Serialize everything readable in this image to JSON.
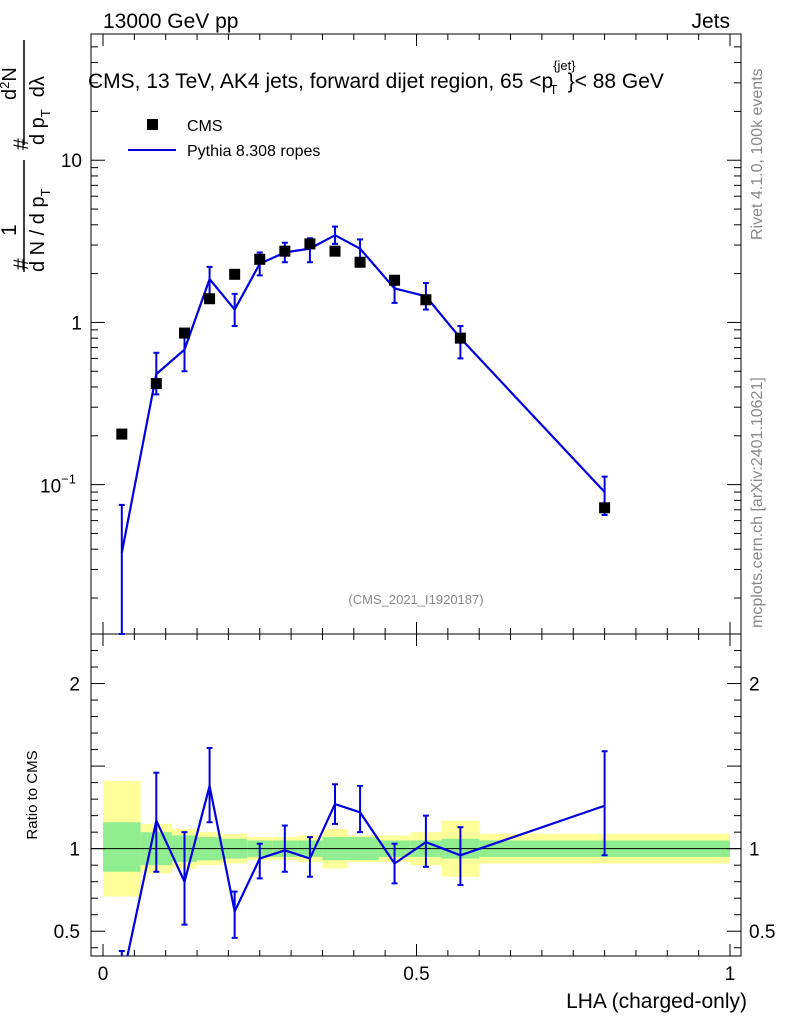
{
  "header": {
    "left": "13000 GeV pp",
    "right": "Jets"
  },
  "title": {
    "main": "CMS, 13 TeV, AK4 jets, forward dijet region, 65 <p",
    "sup": "{jet}",
    "sub": "T",
    "tail": "}< 88 GeV"
  },
  "side_labels": {
    "rivet": "Rivet 4.1.0,  100k events",
    "mcplots": "mcplots.cern.ch [arXiv:2401.10621]"
  },
  "analysis_id": "(CMS_2021_I1920187)",
  "ylabel_top": {
    "hash1": "#",
    "one": "1",
    "dN": "d N / d p",
    "T": "T",
    "hash2": "#",
    "d2N": "d",
    "two": "2",
    "N": "N",
    "dpT": "d p",
    "T2": "T",
    "dlambda": "dλ"
  },
  "ylabel_bottom": "Ratio to CMS",
  "xlabel": "LHA (charged-only)",
  "legend": [
    {
      "label": "CMS",
      "marker": "square",
      "color": "#000000"
    },
    {
      "label": "Pythia 8.308 ropes",
      "marker": "line",
      "color": "#0000e0"
    }
  ],
  "colors": {
    "mc": "#0000e0",
    "data": "#000000",
    "band_inner": "#90ee90",
    "band_outer": "#ffff99"
  },
  "chart_data": {
    "type": "line",
    "x_range": [
      0,
      1
    ],
    "x_ticks": [
      "0",
      "0.5",
      "1"
    ],
    "main": {
      "yscale": "log",
      "ylim": [
        0.012,
        60
      ],
      "y_ticks": [
        {
          "value": 0.1,
          "base": "10",
          "exp": "−1"
        },
        {
          "value": 1,
          "label": "1"
        },
        {
          "value": 10,
          "label": "10"
        }
      ],
      "data": {
        "name": "CMS",
        "x": [
          0.03,
          0.085,
          0.13,
          0.17,
          0.21,
          0.25,
          0.29,
          0.33,
          0.37,
          0.41,
          0.465,
          0.515,
          0.57,
          0.8
        ],
        "y": [
          0.205,
          0.42,
          0.86,
          1.4,
          1.98,
          2.45,
          2.75,
          3.05,
          2.75,
          2.35,
          1.82,
          1.38,
          0.8,
          0.072
        ]
      },
      "mc": {
        "name": "Pythia 8.308 ropes",
        "x": [
          0.03,
          0.085,
          0.13,
          0.17,
          0.21,
          0.25,
          0.29,
          0.33,
          0.37,
          0.41,
          0.465,
          0.515,
          0.57,
          0.8
        ],
        "y": [
          0.038,
          0.48,
          0.68,
          1.85,
          1.2,
          2.3,
          2.7,
          2.85,
          3.45,
          2.85,
          1.62,
          1.45,
          0.8,
          0.09
        ],
        "err_lo": [
          0.03,
          0.12,
          0.18,
          0.4,
          0.25,
          0.35,
          0.35,
          0.5,
          0.4,
          0.45,
          0.3,
          0.25,
          0.2,
          0.025
        ],
        "err_hi": [
          0.037,
          0.17,
          0.22,
          0.35,
          0.3,
          0.4,
          0.4,
          0.45,
          0.45,
          0.4,
          0.3,
          0.3,
          0.15,
          0.022
        ]
      }
    },
    "ratio": {
      "ylim": [
        0.35,
        2.3
      ],
      "y_ticks": [
        {
          "value": 0.5,
          "label": "0.5"
        },
        {
          "value": 1,
          "label": "1"
        },
        {
          "value": 2,
          "label": "2"
        }
      ],
      "reference_line": 1,
      "mc_ratio": {
        "x": [
          0.03,
          0.085,
          0.13,
          0.17,
          0.21,
          0.25,
          0.29,
          0.33,
          0.37,
          0.41,
          0.465,
          0.515,
          0.57,
          0.8
        ],
        "y": [
          0.19,
          1.17,
          0.8,
          1.38,
          0.62,
          0.94,
          0.99,
          0.94,
          1.27,
          1.22,
          0.91,
          1.04,
          0.96,
          1.26
        ],
        "err_lo": [
          0.19,
          0.31,
          0.26,
          0.22,
          0.16,
          0.12,
          0.13,
          0.11,
          0.12,
          0.12,
          0.12,
          0.15,
          0.18,
          0.3
        ],
        "err_hi": [
          0.19,
          0.29,
          0.3,
          0.23,
          0.12,
          0.09,
          0.15,
          0.13,
          0.12,
          0.16,
          0.12,
          0.16,
          0.17,
          0.33
        ]
      },
      "bands": {
        "edges": [
          0.0,
          0.06,
          0.11,
          0.15,
          0.19,
          0.23,
          0.27,
          0.31,
          0.35,
          0.39,
          0.44,
          0.49,
          0.54,
          0.6,
          1.0
        ],
        "inner_lo": [
          0.86,
          0.9,
          0.92,
          0.93,
          0.94,
          0.95,
          0.95,
          0.95,
          0.93,
          0.93,
          0.95,
          0.95,
          0.94,
          0.95
        ],
        "inner_hi": [
          1.16,
          1.1,
          1.08,
          1.07,
          1.06,
          1.05,
          1.05,
          1.05,
          1.07,
          1.07,
          1.05,
          1.05,
          1.06,
          1.05
        ],
        "outer_lo": [
          0.71,
          0.85,
          0.88,
          0.9,
          0.91,
          0.93,
          0.93,
          0.92,
          0.88,
          0.92,
          0.92,
          0.9,
          0.83,
          0.91
        ],
        "outer_hi": [
          1.41,
          1.15,
          1.12,
          1.1,
          1.09,
          1.07,
          1.07,
          1.08,
          1.12,
          1.08,
          1.08,
          1.1,
          1.17,
          1.09
        ]
      }
    }
  }
}
